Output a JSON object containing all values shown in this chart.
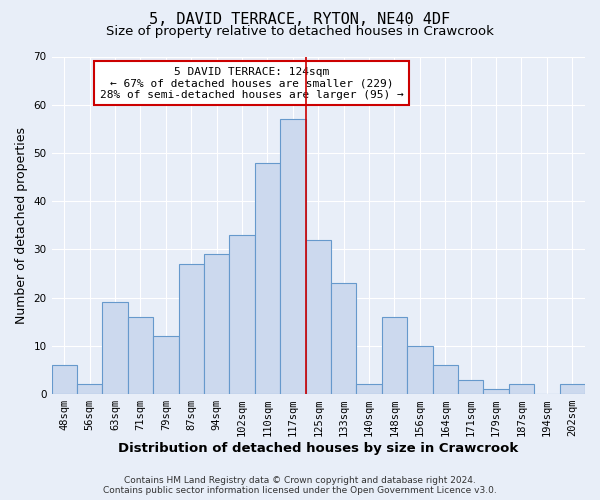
{
  "title": "5, DAVID TERRACE, RYTON, NE40 4DF",
  "subtitle": "Size of property relative to detached houses in Crawcrook",
  "xlabel": "Distribution of detached houses by size in Crawcrook",
  "ylabel": "Number of detached properties",
  "bar_labels": [
    "48sqm",
    "56sqm",
    "63sqm",
    "71sqm",
    "79sqm",
    "87sqm",
    "94sqm",
    "102sqm",
    "110sqm",
    "117sqm",
    "125sqm",
    "133sqm",
    "140sqm",
    "148sqm",
    "156sqm",
    "164sqm",
    "171sqm",
    "179sqm",
    "187sqm",
    "194sqm",
    "202sqm"
  ],
  "bar_values": [
    6,
    2,
    19,
    16,
    12,
    27,
    29,
    33,
    48,
    57,
    32,
    23,
    2,
    16,
    10,
    6,
    3,
    1,
    2,
    0,
    2
  ],
  "bar_color": "#ccd9ee",
  "bar_edge_color": "#6699cc",
  "vline_position": 9.5,
  "vline_color": "#cc0000",
  "ylim": [
    0,
    70
  ],
  "yticks": [
    0,
    10,
    20,
    30,
    40,
    50,
    60,
    70
  ],
  "annotation_title": "5 DAVID TERRACE: 124sqm",
  "annotation_line1": "← 67% of detached houses are smaller (229)",
  "annotation_line2": "28% of semi-detached houses are larger (95) →",
  "annotation_box_facecolor": "#ffffff",
  "annotation_box_edgecolor": "#cc0000",
  "footer1": "Contains HM Land Registry data © Crown copyright and database right 2024.",
  "footer2": "Contains public sector information licensed under the Open Government Licence v3.0.",
  "bg_color": "#e8eef8",
  "plot_bg_color": "#e8eef8",
  "grid_color": "#ffffff",
  "title_fontsize": 11,
  "subtitle_fontsize": 9.5,
  "axis_label_fontsize": 9,
  "tick_fontsize": 7.5,
  "annotation_fontsize": 8,
  "footer_fontsize": 6.5
}
